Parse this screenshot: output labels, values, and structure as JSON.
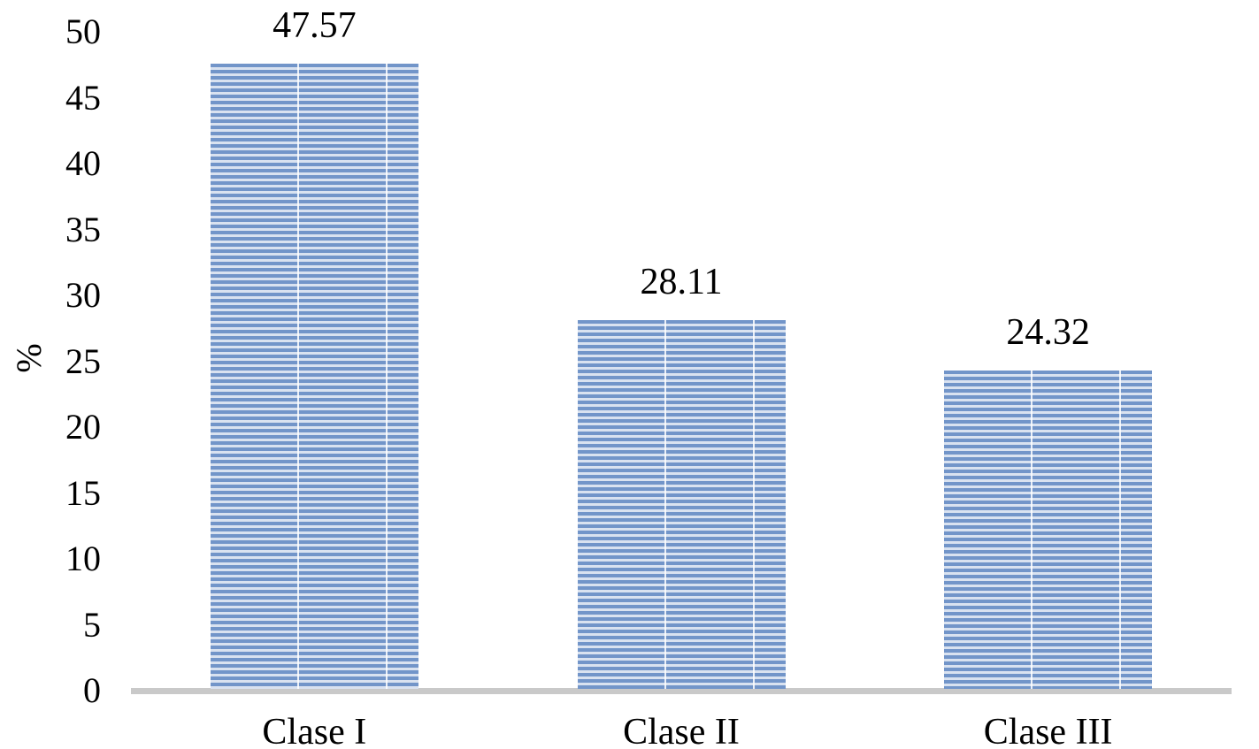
{
  "chart_data": {
    "type": "bar",
    "categories": [
      "Clase I",
      "Clase II",
      "Clase III"
    ],
    "values": [
      47.57,
      28.11,
      24.32
    ],
    "value_labels": [
      "47.57",
      "28.11",
      "24.32"
    ],
    "title": "",
    "xlabel": "",
    "ylabel": "%",
    "ylim": [
      0,
      50
    ],
    "ytick_step": 5,
    "ytick_labels": [
      "0",
      "5",
      "10",
      "15",
      "20",
      "25",
      "30",
      "35",
      "40",
      "45",
      "50"
    ],
    "grid": false,
    "legend": null,
    "bar_pattern": "horizontal-stripes",
    "colors": {
      "bar_stripe": "#7295c9",
      "bar_stripe_background": "#d9e2f0",
      "axis_line": "#c9c9c9",
      "text": "#000000"
    }
  }
}
